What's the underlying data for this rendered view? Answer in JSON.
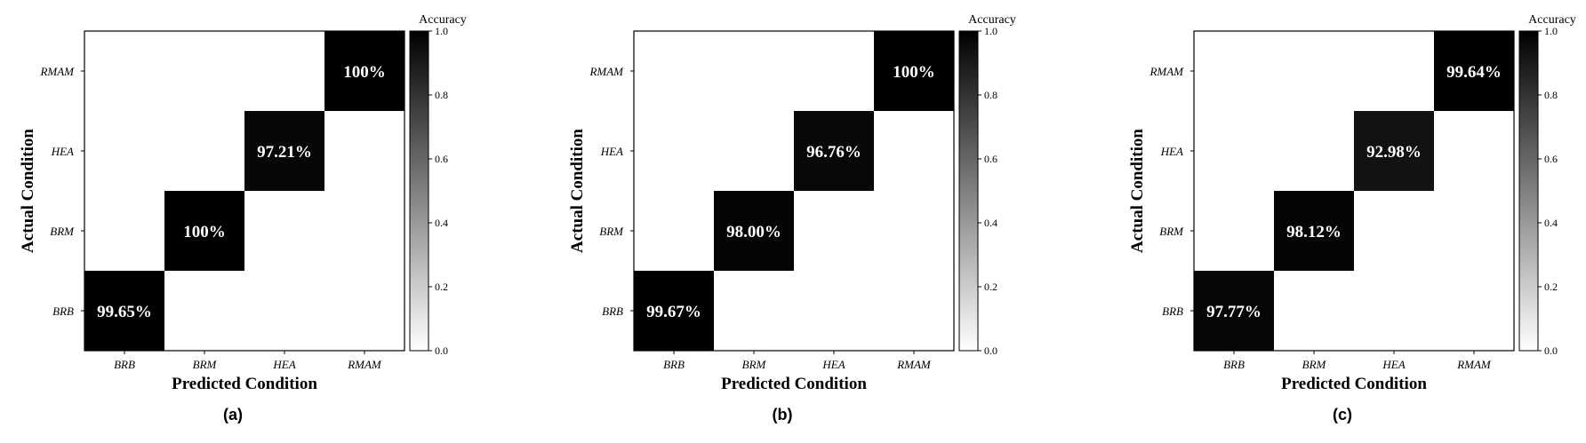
{
  "chart_data": [
    {
      "type": "heatmap",
      "panel_label": "(a)",
      "x_categories": [
        "BRB",
        "BRM",
        "HEA",
        "RMAM"
      ],
      "y_categories": [
        "BRB",
        "BRM",
        "HEA",
        "RMAM"
      ],
      "xlabel": "Predicted Condition",
      "ylabel": "Actual Condition",
      "colorbar": {
        "title": "Accuracy",
        "range": [
          0,
          1
        ],
        "ticks": [
          "0.0",
          "0.2",
          "0.4",
          "0.6",
          "0.8",
          "1.0"
        ]
      },
      "values": [
        [
          0.9965,
          0,
          0,
          0
        ],
        [
          0,
          1.0,
          0,
          0
        ],
        [
          0,
          0,
          0.9721,
          0
        ],
        [
          0,
          0,
          0,
          1.0
        ]
      ],
      "cell_labels": [
        "99.65%",
        "100%",
        "97.21%",
        "100%"
      ]
    },
    {
      "type": "heatmap",
      "panel_label": "(b)",
      "x_categories": [
        "BRB",
        "BRM",
        "HEA",
        "RMAM"
      ],
      "y_categories": [
        "BRB",
        "BRM",
        "HEA",
        "RMAM"
      ],
      "xlabel": "Predicted Condition",
      "ylabel": "Actual Condition",
      "colorbar": {
        "title": "Accuracy",
        "range": [
          0,
          1
        ],
        "ticks": [
          "0.0",
          "0.2",
          "0.4",
          "0.6",
          "0.8",
          "1.0"
        ]
      },
      "values": [
        [
          0.9967,
          0,
          0,
          0
        ],
        [
          0,
          0.98,
          0,
          0
        ],
        [
          0,
          0,
          0.9676,
          0
        ],
        [
          0,
          0,
          0,
          1.0
        ]
      ],
      "cell_labels": [
        "99.67%",
        "98.00%",
        "96.76%",
        "100%"
      ]
    },
    {
      "type": "heatmap",
      "panel_label": "(c)",
      "x_categories": [
        "BRB",
        "BRM",
        "HEA",
        "RMAM"
      ],
      "y_categories": [
        "BRB",
        "BRM",
        "HEA",
        "RMAM"
      ],
      "xlabel": "Predicted Condition",
      "ylabel": "Actual Condition",
      "colorbar": {
        "title": "Accuracy",
        "range": [
          0,
          1
        ],
        "ticks": [
          "0.0",
          "0.2",
          "0.4",
          "0.6",
          "0.8",
          "1.0"
        ]
      },
      "values": [
        [
          0.9777,
          0,
          0,
          0
        ],
        [
          0,
          0.9812,
          0,
          0
        ],
        [
          0,
          0,
          0.9298,
          0
        ],
        [
          0,
          0,
          0,
          0.9964
        ]
      ],
      "cell_labels": [
        "97.77%",
        "98.12%",
        "92.98%",
        "99.64%"
      ]
    }
  ]
}
